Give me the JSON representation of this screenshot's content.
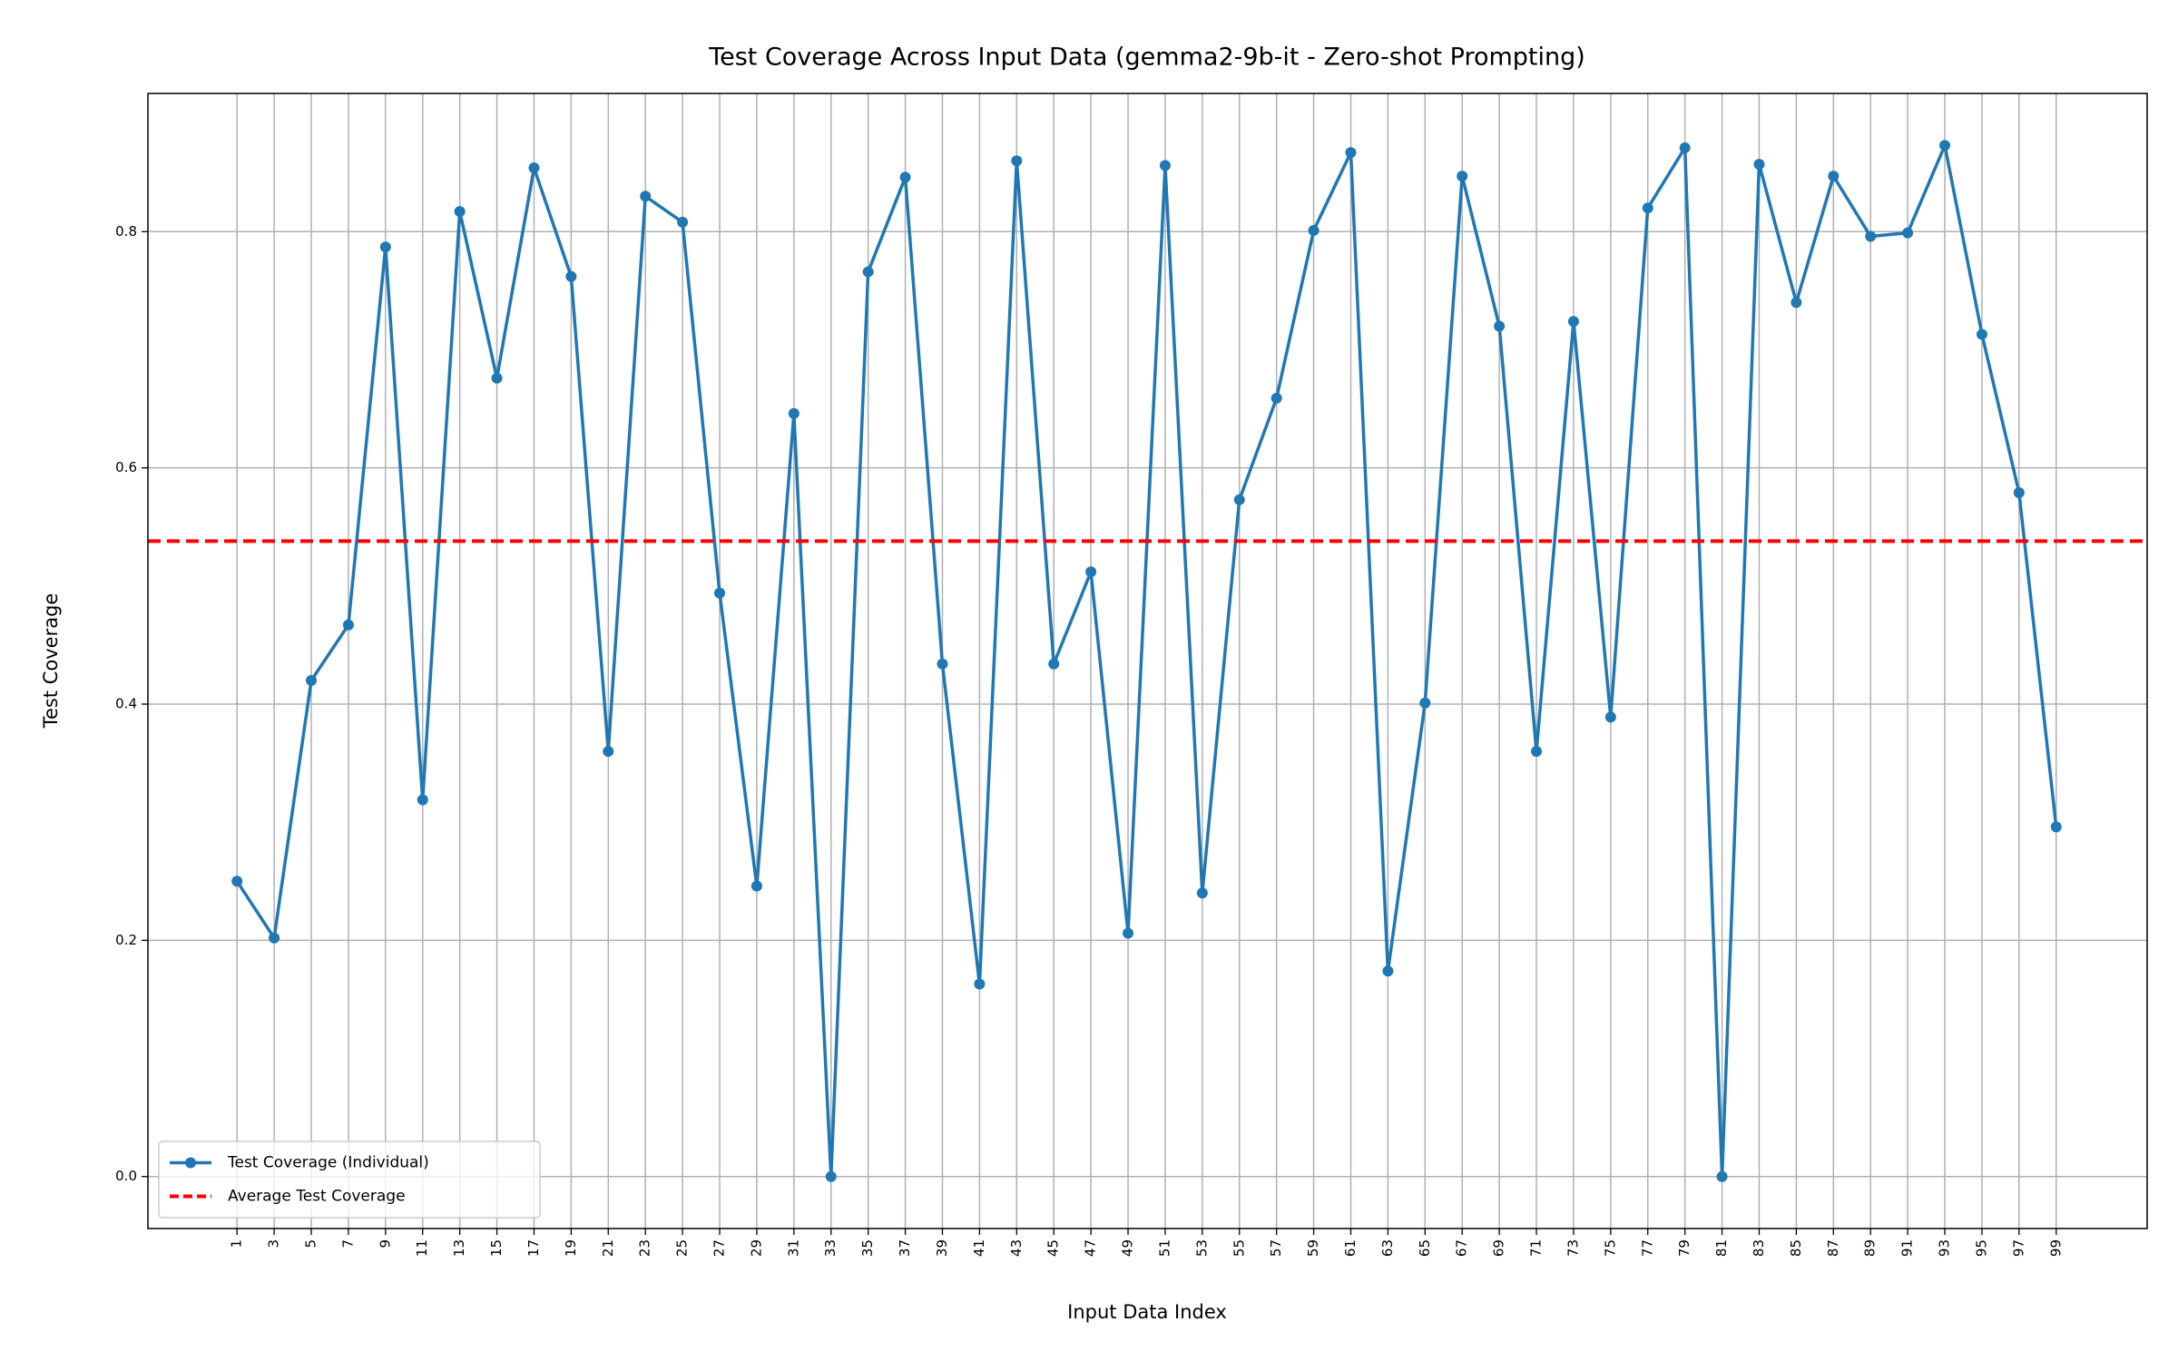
{
  "chart_data": {
    "type": "line",
    "title": "Test Coverage Across Input Data (gemma2-9b-it - Zero-shot Prompting)",
    "xlabel": "Input Data Index",
    "ylabel": "Test Coverage",
    "x": [
      1,
      3,
      5,
      7,
      9,
      11,
      13,
      15,
      17,
      19,
      21,
      23,
      25,
      27,
      29,
      31,
      33,
      35,
      37,
      39,
      41,
      43,
      45,
      47,
      49,
      51,
      53,
      55,
      57,
      59,
      61,
      63,
      65,
      67,
      69,
      71,
      73,
      75,
      77,
      79,
      81,
      83,
      85,
      87,
      89,
      91,
      93,
      95,
      97,
      99
    ],
    "series": [
      {
        "name": "Test Coverage (Individual)",
        "color": "#1f77b4",
        "values": [
          0.25,
          0.202,
          0.42,
          0.467,
          0.787,
          0.319,
          0.817,
          0.676,
          0.854,
          0.762,
          0.36,
          0.83,
          0.808,
          0.494,
          0.246,
          0.646,
          0,
          0.766,
          0.846,
          0.434,
          0.163,
          0.86,
          0.434,
          0.512,
          0.206,
          0.856,
          0.24,
          0.573,
          0.659,
          0.801,
          0.867,
          0.174,
          0.401,
          0.847,
          0.72,
          0.36,
          0.724,
          0.389,
          0.82,
          0.871,
          0,
          0.857,
          0.74,
          0.847,
          0.796,
          0.799,
          0.873,
          0.713,
          0.579,
          0.296
        ]
      }
    ],
    "reference_lines": [
      {
        "name": "Average Test Coverage",
        "value": 0.538,
        "color": "#ff0000"
      }
    ],
    "xlim": [
      -3.8,
      103.9
    ],
    "xticks": [
      1,
      3,
      5,
      7,
      9,
      11,
      13,
      15,
      17,
      19,
      21,
      23,
      25,
      27,
      29,
      31,
      33,
      35,
      37,
      39,
      41,
      43,
      45,
      47,
      49,
      51,
      53,
      55,
      57,
      59,
      61,
      63,
      65,
      67,
      69,
      71,
      73,
      75,
      77,
      79,
      81,
      83,
      85,
      87,
      89,
      91,
      93,
      95,
      97,
      99
    ],
    "ylim": [
      -0.044,
      0.917
    ],
    "yticks": [
      {
        "value": 0,
        "label": "0.0"
      },
      0.2,
      0.4,
      0.6,
      0.8
    ],
    "grid": true,
    "legend": "lower left"
  }
}
